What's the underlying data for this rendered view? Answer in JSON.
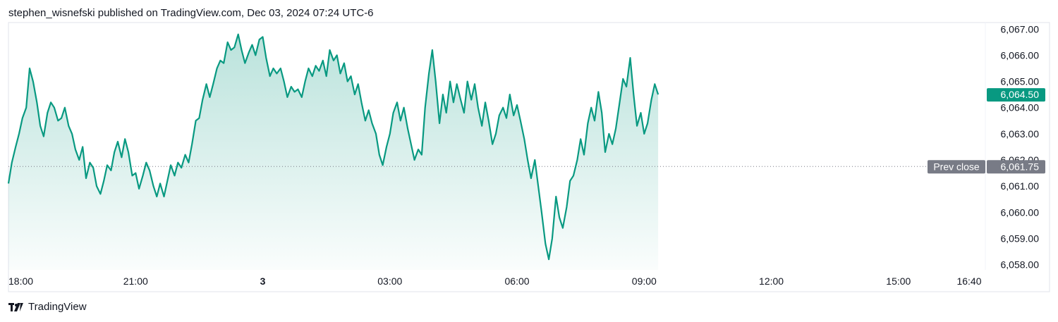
{
  "header": {
    "publisher_line": "stephen_wisnefski published on TradingView.com, Dec 03, 2024 07:24 UTC-6"
  },
  "footer": {
    "brand": "TradingView",
    "logo_icon": "tradingview-logo-icon"
  },
  "colors": {
    "line": "#089981",
    "fill_top": "#089981",
    "prev_close_tag": "#787b86",
    "last_price_tag": "#089981"
  },
  "chart_data": {
    "type": "area",
    "x_ticks": [
      {
        "label": "18:00",
        "hour": 0
      },
      {
        "label": "21:00",
        "hour": 3
      },
      {
        "label": "3",
        "hour": 6,
        "bold": true
      },
      {
        "label": "03:00",
        "hour": 9
      },
      {
        "label": "06:00",
        "hour": 12
      },
      {
        "label": "09:00",
        "hour": 15
      },
      {
        "label": "12:00",
        "hour": 18
      },
      {
        "label": "15:00",
        "hour": 21
      },
      {
        "label": "16:40",
        "hour": 22.667
      }
    ],
    "x_range_hours": [
      0,
      22.9
    ],
    "y_ticks": [
      "6,067.00",
      "6,066.00",
      "6,065.00",
      "6,064.00",
      "6,063.00",
      "6,062.00",
      "6,061.00",
      "6,060.00",
      "6,059.00",
      "6,058.00"
    ],
    "y_tick_values": [
      6067,
      6066,
      6065,
      6064,
      6063,
      6062,
      6061,
      6060,
      6059,
      6058
    ],
    "y_range": [
      6057.8,
      6067.25
    ],
    "prev_close": {
      "label": "Prev close",
      "value": 6061.75,
      "value_label": "6,061.75"
    },
    "last_price": {
      "value": 6064.5,
      "value_label": "6,064.50"
    },
    "series": [
      {
        "points": [
          [
            0.0,
            6061.1
          ],
          [
            0.08,
            6061.9
          ],
          [
            0.17,
            6062.5
          ],
          [
            0.25,
            6063.0
          ],
          [
            0.33,
            6063.6
          ],
          [
            0.42,
            6064.0
          ],
          [
            0.5,
            6065.5
          ],
          [
            0.58,
            6065.0
          ],
          [
            0.67,
            6064.2
          ],
          [
            0.75,
            6063.3
          ],
          [
            0.83,
            6062.9
          ],
          [
            0.92,
            6063.8
          ],
          [
            1.0,
            6064.2
          ],
          [
            1.08,
            6064.0
          ],
          [
            1.17,
            6063.5
          ],
          [
            1.25,
            6063.6
          ],
          [
            1.33,
            6064.0
          ],
          [
            1.42,
            6063.3
          ],
          [
            1.5,
            6063.0
          ],
          [
            1.58,
            6062.4
          ],
          [
            1.67,
            6062.0
          ],
          [
            1.75,
            6062.5
          ],
          [
            1.83,
            6061.3
          ],
          [
            1.92,
            6061.9
          ],
          [
            2.0,
            6061.7
          ],
          [
            2.08,
            6061.0
          ],
          [
            2.17,
            6060.7
          ],
          [
            2.25,
            6061.2
          ],
          [
            2.33,
            6061.8
          ],
          [
            2.42,
            6061.6
          ],
          [
            2.5,
            6062.3
          ],
          [
            2.58,
            6062.7
          ],
          [
            2.67,
            6062.1
          ],
          [
            2.75,
            6062.8
          ],
          [
            2.83,
            6062.3
          ],
          [
            2.92,
            6061.4
          ],
          [
            3.0,
            6061.5
          ],
          [
            3.08,
            6060.9
          ],
          [
            3.17,
            6061.4
          ],
          [
            3.25,
            6061.9
          ],
          [
            3.33,
            6061.6
          ],
          [
            3.42,
            6061.0
          ],
          [
            3.5,
            6060.6
          ],
          [
            3.58,
            6061.1
          ],
          [
            3.67,
            6060.6
          ],
          [
            3.75,
            6061.2
          ],
          [
            3.83,
            6061.8
          ],
          [
            3.92,
            6061.4
          ],
          [
            4.0,
            6061.9
          ],
          [
            4.08,
            6061.7
          ],
          [
            4.17,
            6062.2
          ],
          [
            4.25,
            6061.9
          ],
          [
            4.33,
            6062.6
          ],
          [
            4.42,
            6063.5
          ],
          [
            4.5,
            6063.6
          ],
          [
            4.58,
            6064.3
          ],
          [
            4.67,
            6064.9
          ],
          [
            4.75,
            6064.4
          ],
          [
            4.83,
            6064.9
          ],
          [
            4.92,
            6065.5
          ],
          [
            5.0,
            6065.8
          ],
          [
            5.08,
            6065.7
          ],
          [
            5.17,
            6066.5
          ],
          [
            5.25,
            6066.2
          ],
          [
            5.33,
            6066.3
          ],
          [
            5.42,
            6066.8
          ],
          [
            5.5,
            6066.2
          ],
          [
            5.58,
            6065.7
          ],
          [
            5.67,
            6066.1
          ],
          [
            5.75,
            6066.4
          ],
          [
            5.83,
            6066.0
          ],
          [
            5.92,
            6066.6
          ],
          [
            6.0,
            6066.7
          ],
          [
            6.08,
            6065.9
          ],
          [
            6.17,
            6065.2
          ],
          [
            6.25,
            6065.5
          ],
          [
            6.33,
            6065.3
          ],
          [
            6.42,
            6065.5
          ],
          [
            6.5,
            6065.0
          ],
          [
            6.58,
            6064.4
          ],
          [
            6.67,
            6064.8
          ],
          [
            6.75,
            6064.6
          ],
          [
            6.83,
            6064.7
          ],
          [
            6.92,
            6064.4
          ],
          [
            7.0,
            6065.0
          ],
          [
            7.08,
            6065.5
          ],
          [
            7.17,
            6065.2
          ],
          [
            7.25,
            6065.6
          ],
          [
            7.33,
            6065.4
          ],
          [
            7.42,
            6065.8
          ],
          [
            7.5,
            6065.2
          ],
          [
            7.58,
            6066.2
          ],
          [
            7.67,
            6065.8
          ],
          [
            7.75,
            6066.0
          ],
          [
            7.83,
            6065.3
          ],
          [
            7.92,
            6065.7
          ],
          [
            8.0,
            6065.0
          ],
          [
            8.08,
            6065.2
          ],
          [
            8.17,
            6064.5
          ],
          [
            8.25,
            6064.9
          ],
          [
            8.33,
            6064.2
          ],
          [
            8.42,
            6063.5
          ],
          [
            8.5,
            6063.9
          ],
          [
            8.58,
            6063.4
          ],
          [
            8.67,
            6063.0
          ],
          [
            8.75,
            6062.2
          ],
          [
            8.83,
            6061.8
          ],
          [
            8.92,
            6062.5
          ],
          [
            9.0,
            6063.0
          ],
          [
            9.08,
            6063.8
          ],
          [
            9.17,
            6064.2
          ],
          [
            9.25,
            6063.5
          ],
          [
            9.33,
            6064.0
          ],
          [
            9.42,
            6063.2
          ],
          [
            9.5,
            6062.6
          ],
          [
            9.58,
            6062.0
          ],
          [
            9.67,
            6062.4
          ],
          [
            9.75,
            6062.2
          ],
          [
            9.83,
            6064.0
          ],
          [
            9.92,
            6065.3
          ],
          [
            10.0,
            6066.2
          ],
          [
            10.08,
            6065.0
          ],
          [
            10.17,
            6063.4
          ],
          [
            10.25,
            6064.5
          ],
          [
            10.33,
            6063.8
          ],
          [
            10.42,
            6065.0
          ],
          [
            10.5,
            6064.2
          ],
          [
            10.58,
            6064.9
          ],
          [
            10.67,
            6064.3
          ],
          [
            10.75,
            6063.8
          ],
          [
            10.83,
            6065.0
          ],
          [
            10.92,
            6064.3
          ],
          [
            11.0,
            6064.9
          ],
          [
            11.08,
            6064.0
          ],
          [
            11.17,
            6063.3
          ],
          [
            11.25,
            6064.2
          ],
          [
            11.33,
            6063.5
          ],
          [
            11.42,
            6062.6
          ],
          [
            11.5,
            6063.0
          ],
          [
            11.58,
            6063.7
          ],
          [
            11.67,
            6064.0
          ],
          [
            11.75,
            6063.6
          ],
          [
            11.83,
            6064.5
          ],
          [
            11.92,
            6063.7
          ],
          [
            12.0,
            6064.1
          ],
          [
            12.08,
            6063.5
          ],
          [
            12.17,
            6062.8
          ],
          [
            12.25,
            6062.0
          ],
          [
            12.33,
            6061.3
          ],
          [
            12.42,
            6062.0
          ],
          [
            12.5,
            6061.0
          ],
          [
            12.58,
            6060.0
          ],
          [
            12.67,
            6058.8
          ],
          [
            12.75,
            6058.2
          ],
          [
            12.83,
            6059.0
          ],
          [
            12.92,
            6060.6
          ],
          [
            13.0,
            6059.8
          ],
          [
            13.08,
            6059.4
          ],
          [
            13.17,
            6060.2
          ],
          [
            13.25,
            6061.2
          ],
          [
            13.33,
            6061.4
          ],
          [
            13.42,
            6062.0
          ],
          [
            13.5,
            6062.8
          ],
          [
            13.58,
            6062.2
          ],
          [
            13.67,
            6063.4
          ],
          [
            13.75,
            6064.0
          ],
          [
            13.83,
            6063.5
          ],
          [
            13.92,
            6064.6
          ],
          [
            14.0,
            6063.8
          ],
          [
            14.08,
            6062.3
          ],
          [
            14.17,
            6063.0
          ],
          [
            14.25,
            6062.6
          ],
          [
            14.33,
            6063.2
          ],
          [
            14.42,
            6064.2
          ],
          [
            14.5,
            6065.1
          ],
          [
            14.58,
            6064.8
          ],
          [
            14.67,
            6065.9
          ],
          [
            14.75,
            6064.5
          ],
          [
            14.83,
            6063.3
          ],
          [
            14.92,
            6063.8
          ],
          [
            15.0,
            6063.0
          ],
          [
            15.08,
            6063.4
          ],
          [
            15.17,
            6064.3
          ],
          [
            15.25,
            6064.9
          ],
          [
            15.33,
            6064.5
          ]
        ]
      }
    ]
  }
}
